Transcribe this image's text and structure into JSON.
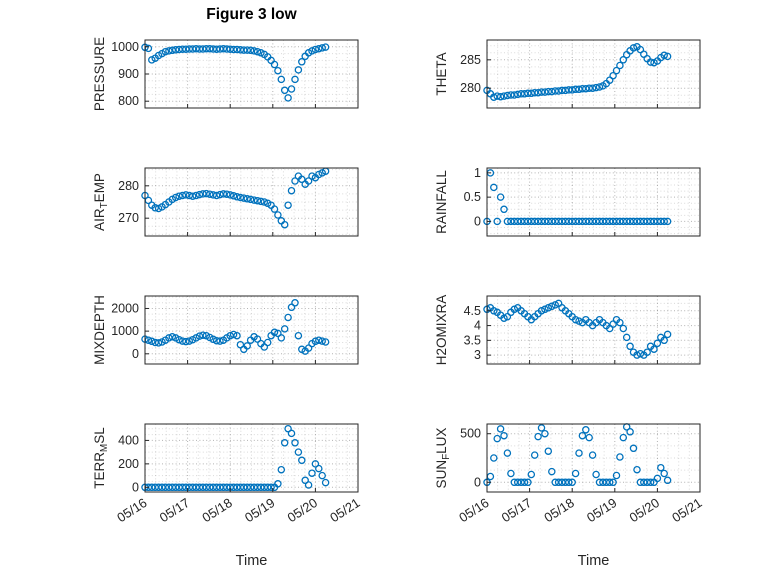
{
  "figure": {
    "title": "Figure 3 low",
    "xlabel": "Time"
  },
  "style": {
    "marker_color": "#0072BD",
    "axis_color": "#262626",
    "background": "#ffffff"
  },
  "chart_data": {
    "type": "scatter",
    "title": "Figure 3 low",
    "xlabel": "Time",
    "marker": "hollow-circle",
    "grid": "major-and-minor-dotted",
    "x": {
      "start": 16,
      "step": 0.08,
      "count": 54,
      "unit": "day-of-May"
    },
    "xlim": [
      16,
      21
    ],
    "xticks": [
      16,
      17,
      18,
      19,
      20,
      21
    ],
    "xticklabels": [
      "05/16",
      "05/17",
      "05/18",
      "05/19",
      "05/20",
      "05/21"
    ],
    "subplots": [
      {
        "name": "PRESSURE",
        "ylabel": [
          {
            "t": "PRESSURE"
          }
        ],
        "ylim": [
          775,
          1025
        ],
        "yticks": [
          800,
          900,
          1000
        ],
        "values": [
          998,
          994,
          952,
          958,
          968,
          975,
          982,
          985,
          987,
          989,
          990,
          991,
          991,
          992,
          992,
          993,
          992,
          992,
          993,
          993,
          992,
          991,
          992,
          993,
          992,
          991,
          990,
          990,
          989,
          988,
          988,
          987,
          985,
          982,
          978,
          972,
          963,
          950,
          935,
          912,
          880,
          840,
          812,
          845,
          880,
          915,
          945,
          965,
          978,
          985,
          990,
          993,
          996,
          999
        ]
      },
      {
        "name": "THETA",
        "ylabel": [
          {
            "t": "THETA"
          }
        ],
        "ylim": [
          276.5,
          288.5
        ],
        "yticks": [
          280,
          285
        ],
        "values": [
          279.6,
          279,
          278.4,
          278.6,
          278.5,
          278.6,
          278.7,
          278.8,
          278.8,
          278.9,
          279,
          279,
          279.1,
          279.1,
          279.2,
          279.2,
          279.3,
          279.3,
          279.4,
          279.4,
          279.5,
          279.5,
          279.6,
          279.6,
          279.7,
          279.7,
          279.8,
          279.8,
          279.9,
          279.9,
          280,
          280,
          280.1,
          280.2,
          280.4,
          280.8,
          281.4,
          282.2,
          283.1,
          284,
          285,
          285.9,
          286.6,
          287.1,
          287.3,
          286.8,
          286,
          285.2,
          284.6,
          284.5,
          284.8,
          285.4,
          285.8,
          285.6
        ]
      },
      {
        "name": "AIR_TEMP",
        "ylabel": [
          {
            "t": "AIR"
          },
          {
            "t": "T",
            "sub": true
          },
          {
            "t": "EMP"
          }
        ],
        "ylim": [
          264.5,
          285.5
        ],
        "yticks": [
          270,
          280
        ],
        "values": [
          277,
          275.5,
          274,
          273.2,
          273,
          273.5,
          274.2,
          275,
          275.8,
          276.4,
          276.8,
          277,
          277.2,
          277,
          276.8,
          277,
          277.3,
          277.5,
          277.6,
          277.4,
          277.2,
          277,
          277.3,
          277.5,
          277.4,
          277.2,
          276.9,
          276.6,
          276.4,
          276.2,
          276,
          275.8,
          275.6,
          275.4,
          275.2,
          275,
          274.6,
          274,
          272.8,
          271,
          269.2,
          268,
          274,
          278.5,
          281.5,
          283,
          282,
          280.5,
          281.5,
          283,
          282.5,
          283.5,
          284,
          284.5
        ]
      },
      {
        "name": "RAINFALL",
        "ylabel": [
          {
            "t": "RAINFALL"
          }
        ],
        "ylim": [
          -0.3,
          1.1
        ],
        "yticks": [
          0,
          0.5,
          1
        ],
        "values": [
          0,
          1,
          0.7,
          0,
          0.5,
          0.25,
          0,
          0,
          0,
          0,
          0,
          0,
          0,
          0,
          0,
          0,
          0,
          0,
          0,
          0,
          0,
          0,
          0,
          0,
          0,
          0,
          0,
          0,
          0,
          0,
          0,
          0,
          0,
          0,
          0,
          0,
          0,
          0,
          0,
          0,
          0,
          0,
          0,
          0,
          0,
          0,
          0,
          0,
          0,
          0,
          0,
          0,
          0,
          0
        ]
      },
      {
        "name": "MIXDEPTH",
        "ylabel": [
          {
            "t": "MIXDEPTH"
          }
        ],
        "ylim": [
          -450,
          2550
        ],
        "yticks": [
          0,
          1000,
          2000
        ],
        "values": [
          650,
          600,
          550,
          500,
          480,
          520,
          600,
          700,
          750,
          700,
          620,
          560,
          540,
          560,
          620,
          700,
          780,
          820,
          800,
          720,
          640,
          580,
          560,
          600,
          700,
          800,
          850,
          800,
          400,
          200,
          350,
          600,
          750,
          650,
          450,
          300,
          500,
          800,
          950,
          900,
          700,
          1100,
          1600,
          2050,
          2250,
          800,
          200,
          120,
          250,
          450,
          550,
          600,
          560,
          520
        ]
      },
      {
        "name": "H2OMIXRA",
        "ylabel": [
          {
            "t": "H2OMIXRA"
          }
        ],
        "ylim": [
          2.7,
          5.0
        ],
        "yticks": [
          3,
          3.5,
          4,
          4.5
        ],
        "values": [
          4.55,
          4.6,
          4.5,
          4.45,
          4.35,
          4.25,
          4.3,
          4.45,
          4.55,
          4.6,
          4.5,
          4.4,
          4.3,
          4.2,
          4.3,
          4.4,
          4.5,
          4.55,
          4.6,
          4.65,
          4.7,
          4.75,
          4.6,
          4.5,
          4.4,
          4.3,
          4.2,
          4.15,
          4.1,
          4.2,
          4.1,
          4,
          4.1,
          4.2,
          4.1,
          4,
          3.9,
          4.05,
          4.2,
          4.1,
          3.9,
          3.6,
          3.3,
          3.1,
          3,
          3.05,
          3,
          3.1,
          3.3,
          3.2,
          3.4,
          3.6,
          3.5,
          3.7
        ]
      },
      {
        "name": "TERR_MSL",
        "ylabel": [
          {
            "t": "TERR"
          },
          {
            "t": "M",
            "sub": true
          },
          {
            "t": "SL"
          }
        ],
        "ylim": [
          -40,
          540
        ],
        "yticks": [
          0,
          200,
          400
        ],
        "values": [
          0,
          0,
          0,
          0,
          0,
          0,
          0,
          0,
          0,
          0,
          0,
          0,
          0,
          0,
          0,
          0,
          0,
          0,
          0,
          0,
          0,
          0,
          0,
          0,
          0,
          0,
          0,
          0,
          0,
          0,
          0,
          0,
          0,
          0,
          0,
          0,
          0,
          0,
          0,
          30,
          150,
          380,
          500,
          460,
          380,
          300,
          230,
          60,
          20,
          120,
          200,
          160,
          100,
          40
        ]
      },
      {
        "name": "SUN_FLUX",
        "ylabel": [
          {
            "t": "SUN"
          },
          {
            "t": "F",
            "sub": true
          },
          {
            "t": "LUX"
          }
        ],
        "ylim": [
          -100,
          600
        ],
        "yticks": [
          0,
          500
        ],
        "values": [
          0,
          60,
          250,
          450,
          550,
          480,
          300,
          90,
          0,
          0,
          0,
          0,
          0,
          80,
          280,
          470,
          560,
          500,
          320,
          110,
          0,
          0,
          0,
          0,
          0,
          0,
          90,
          300,
          480,
          540,
          460,
          280,
          80,
          0,
          0,
          0,
          0,
          0,
          70,
          260,
          460,
          570,
          520,
          350,
          130,
          0,
          0,
          0,
          0,
          0,
          40,
          150,
          90,
          20
        ]
      }
    ]
  }
}
